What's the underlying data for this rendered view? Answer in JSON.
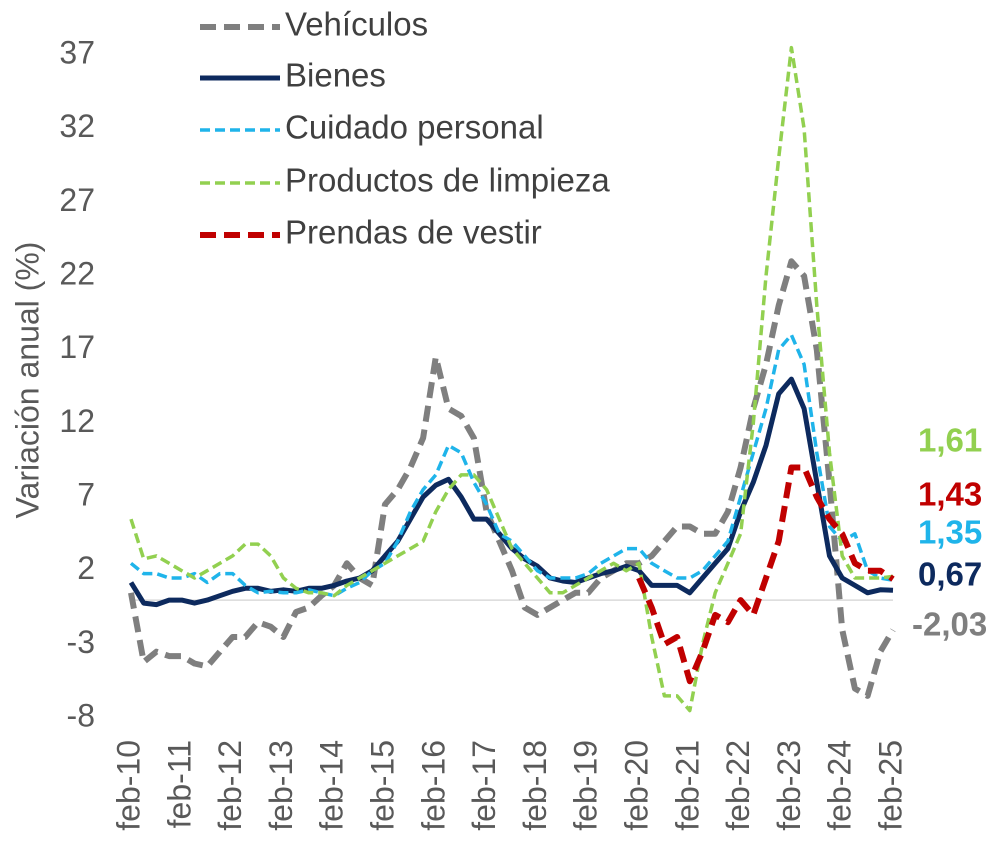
{
  "chart_data": {
    "type": "line",
    "y_label": "Variación anual (%)",
    "ylim": [
      -8,
      37
    ],
    "yticks": [
      -8,
      -3,
      2,
      7,
      12,
      17,
      22,
      27,
      32,
      37
    ],
    "zero_line": true,
    "categories": [
      "feb-10",
      null,
      null,
      null,
      "feb-11",
      null,
      null,
      null,
      "feb-12",
      null,
      null,
      null,
      "feb-13",
      null,
      null,
      null,
      "feb-14",
      null,
      null,
      null,
      "feb-15",
      null,
      null,
      null,
      "feb-16",
      null,
      null,
      null,
      "feb-17",
      null,
      null,
      null,
      "feb-18",
      null,
      null,
      null,
      "feb-19",
      null,
      null,
      null,
      "feb-20",
      null,
      null,
      null,
      "feb-21",
      null,
      null,
      null,
      "feb-22",
      null,
      null,
      null,
      "feb-23",
      null,
      null,
      null,
      "feb-24",
      null,
      null,
      null,
      "feb-25"
    ],
    "series": [
      {
        "name": "Vehículos",
        "color": "#7f7f7f",
        "dashed": true,
        "values": [
          0.5,
          -4.2,
          -3.5,
          -3.8,
          -3.8,
          -4.3,
          -4.5,
          -3.5,
          -2.5,
          -2.5,
          -1.5,
          -1.8,
          -2.5,
          -0.8,
          -0.5,
          0.3,
          1.0,
          2.5,
          1.5,
          1.0,
          6.5,
          7.5,
          9,
          11,
          16.5,
          13,
          12.5,
          11,
          6,
          4,
          2,
          -0.5,
          -1,
          -0.5,
          0,
          0.5,
          0.5,
          1.5,
          2,
          2.5,
          2.5,
          3,
          4,
          5,
          5,
          4.5,
          4.5,
          6,
          9,
          13,
          16,
          20,
          23,
          22,
          17,
          8,
          -2,
          -6,
          -6.5,
          -3.5,
          -2.03
        ],
        "value_labels": [
          null,
          null,
          null,
          null,
          null,
          null,
          null,
          null,
          null,
          null,
          null,
          null,
          null,
          null,
          null,
          null,
          null,
          null,
          null,
          null,
          null,
          null,
          null,
          null,
          null,
          null,
          null,
          null,
          null,
          null,
          null,
          null,
          null,
          null,
          null,
          null,
          null,
          null,
          null,
          null,
          null,
          null,
          null,
          null,
          null,
          null,
          null,
          null,
          null,
          null,
          null,
          null,
          null,
          null,
          null,
          null,
          null,
          null,
          null,
          null,
          "-2,03"
        ]
      },
      {
        "name": "Bienes",
        "color": "#0d2a5e",
        "dashed": false,
        "values": [
          1.2,
          -0.2,
          -0.3,
          0,
          0,
          -0.2,
          0,
          0.3,
          0.6,
          0.8,
          0.8,
          0.6,
          0.7,
          0.6,
          0.8,
          0.8,
          1.0,
          1.3,
          1.5,
          2.0,
          3.0,
          4.0,
          5.5,
          7.0,
          7.8,
          8.2,
          7.0,
          5.5,
          5.5,
          4.5,
          3.5,
          2.8,
          2.3,
          1.5,
          1.3,
          1.2,
          1.5,
          1.8,
          2.0,
          2.3,
          2.0,
          1.0,
          1.0,
          1.0,
          0.5,
          1.5,
          2.5,
          3.5,
          6.0,
          8.0,
          10.5,
          14,
          15,
          13,
          8,
          3,
          1.5,
          1.0,
          0.5,
          0.7,
          0.67
        ],
        "value_labels": [
          null,
          null,
          null,
          null,
          null,
          null,
          null,
          null,
          null,
          null,
          null,
          null,
          null,
          null,
          null,
          null,
          null,
          null,
          null,
          null,
          null,
          null,
          null,
          null,
          null,
          null,
          null,
          null,
          null,
          null,
          null,
          null,
          null,
          null,
          null,
          null,
          null,
          null,
          null,
          null,
          null,
          null,
          null,
          null,
          null,
          null,
          null,
          null,
          null,
          null,
          null,
          null,
          null,
          null,
          null,
          null,
          null,
          null,
          null,
          null,
          "0,67"
        ]
      },
      {
        "name": "Cuidado personal",
        "color": "#1fb4ea",
        "dashed": true,
        "values": [
          2.5,
          1.8,
          1.8,
          1.5,
          1.5,
          1.8,
          1.2,
          1.8,
          1.8,
          1.0,
          0.5,
          0.6,
          0.5,
          0.5,
          0.7,
          0.5,
          0.3,
          0.8,
          1.2,
          2.0,
          2.5,
          4,
          6,
          7.5,
          8.5,
          10.5,
          10,
          8,
          6.5,
          4.5,
          4.0,
          3.0,
          2.0,
          1.5,
          1.5,
          1.5,
          1.8,
          2.5,
          3.0,
          3.5,
          3.5,
          2.5,
          2.0,
          1.5,
          1.5,
          2.0,
          3.0,
          4.0,
          7,
          10,
          13,
          17,
          18,
          16,
          10,
          5,
          4,
          4.5,
          2,
          1.5,
          1.35
        ],
        "value_labels": [
          null,
          null,
          null,
          null,
          null,
          null,
          null,
          null,
          null,
          null,
          null,
          null,
          null,
          null,
          null,
          null,
          null,
          null,
          null,
          null,
          null,
          null,
          null,
          null,
          null,
          null,
          null,
          null,
          null,
          null,
          null,
          null,
          null,
          null,
          null,
          null,
          null,
          null,
          null,
          null,
          null,
          null,
          null,
          null,
          null,
          null,
          null,
          null,
          null,
          null,
          null,
          null,
          null,
          null,
          null,
          null,
          null,
          null,
          null,
          null,
          "1,35"
        ]
      },
      {
        "name": "Productos de limpieza",
        "color": "#92d050",
        "dashed": true,
        "values": [
          5.5,
          2.8,
          3.0,
          2.5,
          2.0,
          1.5,
          2.0,
          2.5,
          3.0,
          3.8,
          3.8,
          3.0,
          1.5,
          0.8,
          0.5,
          0.5,
          0.3,
          1.0,
          1.5,
          2.0,
          2.5,
          3.0,
          3.5,
          4.0,
          6.0,
          7.5,
          8.5,
          8.5,
          7.5,
          5.5,
          3.5,
          2.5,
          1.5,
          0.5,
          0.5,
          1.0,
          1.5,
          2.0,
          2.5,
          2.0,
          2.5,
          -2.5,
          -6.5,
          -6.5,
          -7.5,
          -3,
          0.5,
          2.5,
          4.5,
          12,
          22,
          30,
          37.5,
          32,
          20,
          10,
          3,
          1.5,
          1.5,
          1.5,
          1.61
        ],
        "value_labels": [
          null,
          null,
          null,
          null,
          null,
          null,
          null,
          null,
          null,
          null,
          null,
          null,
          null,
          null,
          null,
          null,
          null,
          null,
          null,
          null,
          null,
          null,
          null,
          null,
          null,
          null,
          null,
          null,
          null,
          null,
          null,
          null,
          null,
          null,
          null,
          null,
          null,
          null,
          null,
          null,
          null,
          null,
          null,
          null,
          null,
          null,
          null,
          null,
          null,
          null,
          null,
          null,
          null,
          null,
          null,
          null,
          null,
          null,
          null,
          null,
          "1,61"
        ]
      },
      {
        "name": "Prendas de vestir",
        "color": "#c00000",
        "dashed": true,
        "values": [
          null,
          null,
          null,
          null,
          null,
          null,
          null,
          null,
          null,
          null,
          null,
          null,
          null,
          null,
          null,
          null,
          null,
          null,
          null,
          null,
          null,
          null,
          null,
          null,
          null,
          null,
          null,
          null,
          null,
          null,
          null,
          null,
          null,
          null,
          null,
          null,
          null,
          null,
          null,
          null,
          1.5,
          -0.5,
          -3,
          -2.5,
          -5.5,
          -3.5,
          -1,
          -1.5,
          0,
          -1,
          1.5,
          4,
          9,
          9,
          7,
          5.5,
          4.5,
          2.5,
          2,
          2,
          1.43
        ],
        "value_labels": [
          null,
          null,
          null,
          null,
          null,
          null,
          null,
          null,
          null,
          null,
          null,
          null,
          null,
          null,
          null,
          null,
          null,
          null,
          null,
          null,
          null,
          null,
          null,
          null,
          null,
          null,
          null,
          null,
          null,
          null,
          null,
          null,
          null,
          null,
          null,
          null,
          null,
          null,
          null,
          null,
          null,
          null,
          null,
          null,
          null,
          null,
          null,
          null,
          null,
          null,
          null,
          null,
          null,
          null,
          null,
          null,
          null,
          null,
          null,
          null,
          "1,43"
        ]
      }
    ]
  }
}
